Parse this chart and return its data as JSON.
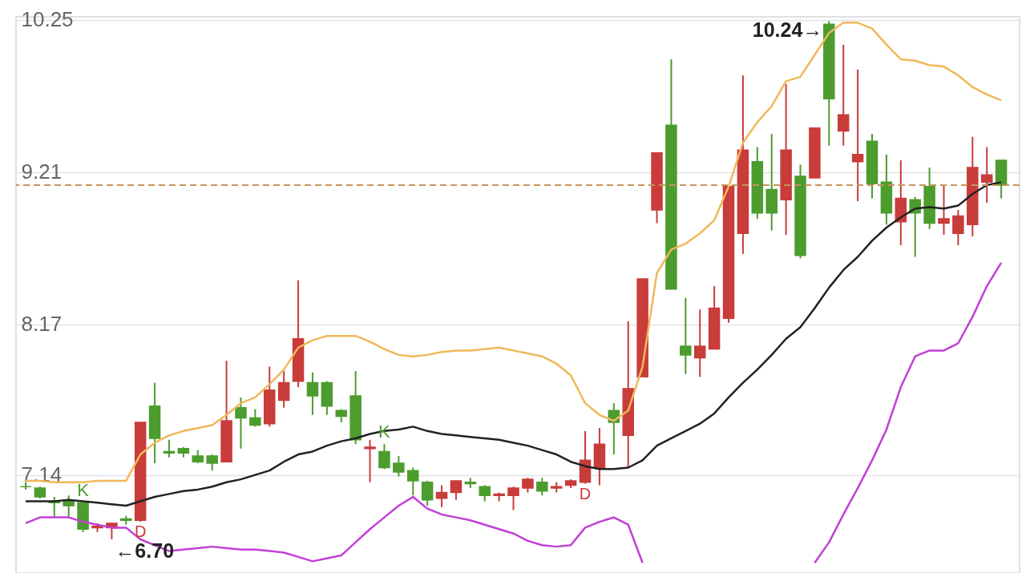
{
  "chart_data": {
    "type": "candlestick",
    "categories": [
      null,
      null,
      null,
      null,
      null,
      null,
      null,
      null,
      null,
      null,
      null,
      null,
      null,
      null,
      null,
      null,
      null,
      null,
      null,
      null,
      null,
      null,
      null,
      null,
      null,
      null,
      null,
      null,
      null,
      null,
      null,
      null,
      null,
      null,
      null,
      null,
      null,
      null,
      null,
      null,
      null,
      null,
      null,
      null,
      null,
      null,
      null,
      null,
      null,
      null,
      null,
      null,
      null,
      null,
      null,
      null,
      null,
      null,
      null,
      null,
      null,
      null,
      null,
      null,
      null,
      null,
      null,
      null,
      null
    ],
    "ylim": [
      6.47,
      10.27
    ],
    "yticks": [
      7.14,
      8.17,
      9.21,
      10.25
    ],
    "tick_labels": "y",
    "grid": "y",
    "marker": "none",
    "line_style": "solid",
    "ohlc": [
      [
        7.06,
        7.09,
        7.04,
        7.06
      ],
      [
        7.05,
        7.06,
        6.98,
        6.99
      ],
      [
        6.96,
        6.99,
        6.85,
        6.95
      ],
      [
        6.96,
        7.0,
        6.85,
        6.93
      ],
      [
        6.95,
        6.95,
        6.75,
        6.77
      ],
      [
        6.78,
        6.81,
        6.75,
        6.79
      ],
      [
        6.78,
        6.81,
        6.7,
        6.81
      ],
      [
        6.84,
        6.86,
        6.8,
        6.83
      ],
      [
        6.83,
        7.5,
        6.82,
        7.5
      ],
      [
        7.61,
        7.77,
        7.22,
        7.39
      ],
      [
        7.3,
        7.38,
        7.26,
        7.29
      ],
      [
        7.32,
        7.33,
        7.26,
        7.29
      ],
      [
        7.27,
        7.31,
        7.22,
        7.23
      ],
      [
        7.27,
        7.28,
        7.17,
        7.22
      ],
      [
        7.23,
        7.92,
        7.23,
        7.51
      ],
      [
        7.6,
        7.67,
        7.32,
        7.53
      ],
      [
        7.53,
        7.59,
        7.47,
        7.48
      ],
      [
        7.49,
        7.88,
        7.47,
        7.72
      ],
      [
        7.65,
        7.85,
        7.6,
        7.77
      ],
      [
        7.78,
        8.47,
        7.74,
        8.07
      ],
      [
        7.77,
        7.84,
        7.55,
        7.68
      ],
      [
        7.77,
        7.78,
        7.55,
        7.61
      ],
      [
        7.58,
        7.59,
        7.5,
        7.54
      ],
      [
        7.68,
        7.85,
        7.35,
        7.38
      ],
      [
        7.32,
        7.38,
        7.09,
        7.33
      ],
      [
        7.3,
        7.35,
        7.18,
        7.19
      ],
      [
        7.22,
        7.27,
        7.13,
        7.16
      ],
      [
        7.17,
        7.19,
        7.0,
        7.1
      ],
      [
        7.09,
        7.1,
        6.93,
        6.97
      ],
      [
        6.98,
        7.07,
        6.92,
        7.02
      ],
      [
        7.02,
        7.1,
        6.97,
        7.1
      ],
      [
        7.09,
        7.12,
        7.05,
        7.08
      ],
      [
        7.06,
        7.07,
        6.96,
        7.0
      ],
      [
        7.0,
        7.02,
        6.96,
        7.01
      ],
      [
        7.0,
        7.06,
        6.9,
        7.05
      ],
      [
        7.05,
        7.12,
        7.02,
        7.11
      ],
      [
        7.09,
        7.12,
        7.0,
        7.03
      ],
      [
        7.05,
        7.09,
        7.02,
        7.06
      ],
      [
        7.07,
        7.11,
        7.05,
        7.1
      ],
      [
        7.09,
        7.44,
        7.08,
        7.24
      ],
      [
        7.19,
        7.46,
        7.07,
        7.35
      ],
      [
        7.58,
        7.63,
        7.28,
        7.5
      ],
      [
        7.41,
        8.19,
        7.19,
        7.73
      ],
      [
        7.81,
        8.48,
        7.81,
        8.48
      ],
      [
        8.95,
        9.34,
        8.86,
        9.34
      ],
      [
        9.53,
        9.98,
        8.41,
        8.41
      ],
      [
        8.02,
        8.35,
        7.83,
        7.96
      ],
      [
        7.94,
        8.27,
        7.81,
        8.02
      ],
      [
        8.0,
        8.43,
        8.0,
        8.28
      ],
      [
        8.21,
        9.11,
        8.18,
        9.11
      ],
      [
        8.79,
        9.87,
        8.65,
        9.36
      ],
      [
        9.28,
        9.38,
        8.89,
        8.93
      ],
      [
        9.09,
        9.47,
        8.81,
        8.93
      ],
      [
        9.02,
        9.81,
        8.78,
        9.36
      ],
      [
        9.18,
        9.26,
        8.62,
        8.64
      ],
      [
        9.17,
        9.51,
        9.17,
        9.51
      ],
      [
        10.22,
        10.24,
        9.39,
        9.71
      ],
      [
        9.49,
        10.08,
        9.39,
        9.6
      ],
      [
        9.28,
        9.91,
        9.01,
        9.33
      ],
      [
        9.42,
        9.47,
        9.03,
        9.13
      ],
      [
        9.14,
        9.33,
        8.85,
        8.93
      ],
      [
        8.87,
        9.29,
        8.71,
        9.03
      ],
      [
        9.02,
        9.04,
        8.63,
        8.93
      ],
      [
        9.11,
        9.24,
        8.82,
        8.86
      ],
      [
        8.86,
        9.12,
        8.78,
        8.89
      ],
      [
        8.79,
        8.95,
        8.71,
        8.91
      ],
      [
        8.85,
        9.45,
        8.77,
        9.24
      ],
      [
        9.14,
        9.38,
        9.0,
        9.19
      ],
      [
        9.29,
        9.29,
        9.03,
        9.12
      ]
    ],
    "colors": [
      "#4c9c2e",
      "#4c9c2e",
      "#4c9c2e",
      "#4c9c2e",
      "#4c9c2e",
      "#c83c3a",
      "#c83c3a",
      "#4c9c2e",
      "#c83c3a",
      "#4c9c2e",
      "#4c9c2e",
      "#4c9c2e",
      "#4c9c2e",
      "#4c9c2e",
      "#c83c3a",
      "#4c9c2e",
      "#4c9c2e",
      "#c83c3a",
      "#c83c3a",
      "#c83c3a",
      "#4c9c2e",
      "#4c9c2e",
      "#4c9c2e",
      "#4c9c2e",
      "#c83c3a",
      "#4c9c2e",
      "#4c9c2e",
      "#4c9c2e",
      "#4c9c2e",
      "#c83c3a",
      "#c83c3a",
      "#4c9c2e",
      "#4c9c2e",
      "#c83c3a",
      "#c83c3a",
      "#c83c3a",
      "#4c9c2e",
      "#c83c3a",
      "#c83c3a",
      "#c83c3a",
      "#c83c3a",
      "#4c9c2e",
      "#c83c3a",
      "#c83c3a",
      "#c83c3a",
      "#4c9c2e",
      "#4c9c2e",
      "#c83c3a",
      "#c83c3a",
      "#c83c3a",
      "#c83c3a",
      "#4c9c2e",
      "#4c9c2e",
      "#c83c3a",
      "#4c9c2e",
      "#c83c3a",
      "#4c9c2e",
      "#c83c3a",
      "#c83c3a",
      "#4c9c2e",
      "#4c9c2e",
      "#c83c3a",
      "#4c9c2e",
      "#4c9c2e",
      "#c83c3a",
      "#c83c3a",
      "#c83c3a",
      "#c83c3a",
      "#4c9c2e"
    ],
    "series": [
      {
        "type": "line",
        "color": "#f0b85a",
        "values": [
          7.1,
          7.1,
          7.09,
          7.09,
          7.09,
          7.1,
          7.1,
          7.1,
          7.28,
          7.36,
          7.41,
          7.44,
          7.46,
          7.48,
          7.55,
          7.63,
          7.67,
          7.76,
          7.86,
          8.01,
          8.06,
          8.09,
          8.09,
          8.09,
          8.05,
          8.0,
          7.96,
          7.95,
          7.96,
          7.98,
          7.99,
          7.99,
          8.0,
          8.01,
          7.99,
          7.97,
          7.95,
          7.9,
          7.82,
          7.63,
          7.55,
          7.51,
          7.58,
          7.88,
          8.52,
          8.68,
          8.72,
          8.79,
          8.88,
          9.11,
          9.41,
          9.55,
          9.66,
          9.83,
          9.86,
          10.01,
          10.16,
          10.23,
          10.23,
          10.19,
          10.08,
          9.98,
          9.97,
          9.94,
          9.93,
          9.87,
          9.79,
          9.74,
          9.7
        ]
      },
      {
        "type": "line",
        "color": "#222222",
        "values": [
          6.96,
          6.96,
          6.96,
          6.97,
          6.96,
          6.95,
          6.94,
          6.93,
          6.96,
          6.99,
          7.01,
          7.03,
          7.04,
          7.06,
          7.09,
          7.11,
          7.14,
          7.17,
          7.23,
          7.28,
          7.3,
          7.34,
          7.37,
          7.39,
          7.42,
          7.44,
          7.45,
          7.47,
          7.44,
          7.42,
          7.41,
          7.4,
          7.39,
          7.38,
          7.36,
          7.34,
          7.31,
          7.28,
          7.23,
          7.2,
          7.18,
          7.18,
          7.19,
          7.24,
          7.34,
          7.39,
          7.44,
          7.49,
          7.56,
          7.67,
          7.77,
          7.86,
          7.96,
          8.07,
          8.15,
          8.28,
          8.42,
          8.54,
          8.63,
          8.74,
          8.83,
          8.9,
          8.96,
          8.97,
          8.96,
          8.98,
          9.06,
          9.12,
          9.14
        ]
      },
      {
        "type": "line",
        "color": "#c23fd6",
        "values": [
          6.81,
          6.85,
          6.85,
          6.85,
          6.82,
          6.8,
          6.78,
          6.78,
          6.7,
          6.66,
          6.62,
          6.63,
          6.64,
          6.65,
          6.64,
          6.63,
          6.63,
          6.62,
          6.61,
          6.58,
          6.55,
          6.57,
          6.59,
          6.68,
          6.77,
          6.85,
          6.93,
          6.99,
          6.91,
          6.87,
          6.85,
          6.83,
          6.8,
          6.77,
          6.74,
          6.69,
          6.66,
          6.65,
          6.66,
          6.78,
          6.82,
          6.85,
          6.8,
          6.54,
          null,
          null,
          null,
          null,
          null,
          null,
          null,
          null,
          null,
          null,
          null,
          6.54,
          6.68,
          6.87,
          7.05,
          7.24,
          7.45,
          7.74,
          7.95,
          7.99,
          7.99,
          8.04,
          8.22,
          8.43,
          8.59
        ]
      }
    ],
    "ref_lines": [
      {
        "axis": "y",
        "value": 9.12,
        "color": "#c8935a",
        "line_style": "dashed"
      }
    ],
    "annotations": [
      {
        "text": "K",
        "y": 6.95
      },
      {
        "text": "D",
        "y": 6.82
      },
      {
        "text": "K",
        "y": 7.35
      },
      {
        "text": "D",
        "y": 7.08
      },
      "10.24→",
      {
        "text": "←6.70",
        "y": 6.7
      }
    ]
  }
}
